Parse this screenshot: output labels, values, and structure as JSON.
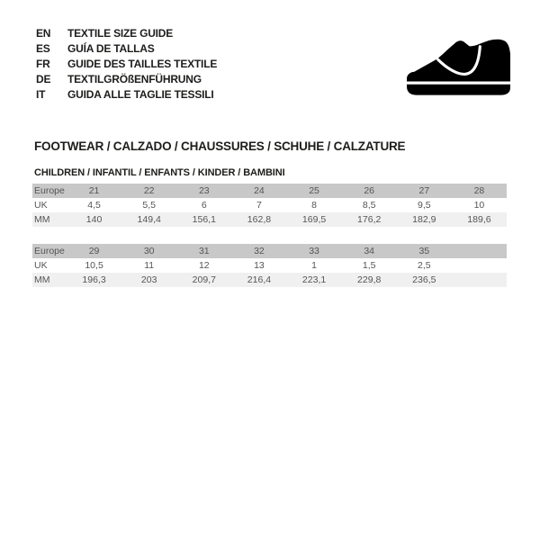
{
  "languages": [
    {
      "code": "EN",
      "label": "TEXTILE SIZE GUIDE"
    },
    {
      "code": "ES",
      "label": "GUÍA DE TALLAS"
    },
    {
      "code": "FR",
      "label": "GUIDE DES TAILLES TEXTILE"
    },
    {
      "code": "DE",
      "label": "TEXTILGRÖßENFÜHRUNG"
    },
    {
      "code": "IT",
      "label": "GUIDA ALLE TAGLIE TESSILI"
    }
  ],
  "logo": {
    "name": "children-shoe-silhouette"
  },
  "section_title": "FOOTWEAR / CALZADO / CHAUSSURES / SCHUHE / CALZATURE",
  "subsection_title": "CHILDREN / INFANTIL / ENFANTS / KINDER / BAMBINI",
  "tables": [
    {
      "rows": [
        {
          "label": "Europe",
          "values": [
            "21",
            "22",
            "23",
            "24",
            "25",
            "26",
            "27",
            "28"
          ]
        },
        {
          "label": "UK",
          "values": [
            "4,5",
            "5,5",
            "6",
            "7",
            "8",
            "8,5",
            "9,5",
            "10"
          ]
        },
        {
          "label": "MM",
          "values": [
            "140",
            "149,4",
            "156,1",
            "162,8",
            "169,5",
            "176,2",
            "182,9",
            "189,6"
          ]
        }
      ]
    },
    {
      "rows": [
        {
          "label": "Europe",
          "values": [
            "29",
            "30",
            "31",
            "32",
            "33",
            "34",
            "35",
            ""
          ]
        },
        {
          "label": "UK",
          "values": [
            "10,5",
            "11",
            "12",
            "13",
            "1",
            "1,5",
            "2,5",
            ""
          ]
        },
        {
          "label": "MM",
          "values": [
            "196,3",
            "203",
            "209,7",
            "216,4",
            "223,1",
            "229,8",
            "236,5",
            ""
          ]
        }
      ]
    }
  ],
  "colors": {
    "header_row_bg": "#c8c8c8",
    "alt_row_bg": "#f0f0f0",
    "table_text": "#555555",
    "heading_text": "#1d1d1b",
    "logo_color": "#000000"
  }
}
